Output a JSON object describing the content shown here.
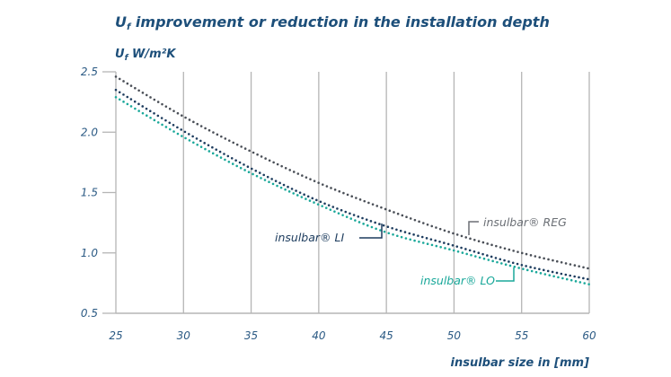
{
  "chart_data": {
    "type": "line",
    "title": "U",
    "title_sub": "f",
    "title_rest": " improvement or reduction in the installation depth",
    "ylabel": "U",
    "ylabel_sub": "f",
    "ylabel_rest": " W/m²K",
    "xlabel": "insulbar size in [mm]",
    "x": [
      25,
      30,
      35,
      40,
      45,
      50,
      55,
      60
    ],
    "xlim": [
      25,
      60
    ],
    "ylim": [
      0.5,
      2.5
    ],
    "xticks": [
      "25",
      "30",
      "35",
      "40",
      "45",
      "50",
      "55",
      "60"
    ],
    "yticks": [
      "0.5",
      "1.0",
      "1.5",
      "2.0",
      "2.5"
    ],
    "ytick_values": [
      0.5,
      1.0,
      1.5,
      2.0,
      2.5
    ],
    "grid": "vertical",
    "line_style": "dotted",
    "series": [
      {
        "name": "insulbar® REG",
        "color": "#4a4f57",
        "values": [
          2.46,
          2.13,
          1.84,
          1.58,
          1.36,
          1.16,
          1.0,
          0.87
        ]
      },
      {
        "name": "insulbar® LI",
        "color": "#1d3c5e",
        "values": [
          2.35,
          2.01,
          1.7,
          1.43,
          1.22,
          1.06,
          0.9,
          0.78
        ]
      },
      {
        "name": "insulbar® LO",
        "color": "#1aa89a",
        "values": [
          2.29,
          1.96,
          1.66,
          1.4,
          1.17,
          1.02,
          0.87,
          0.74
        ]
      }
    ]
  }
}
